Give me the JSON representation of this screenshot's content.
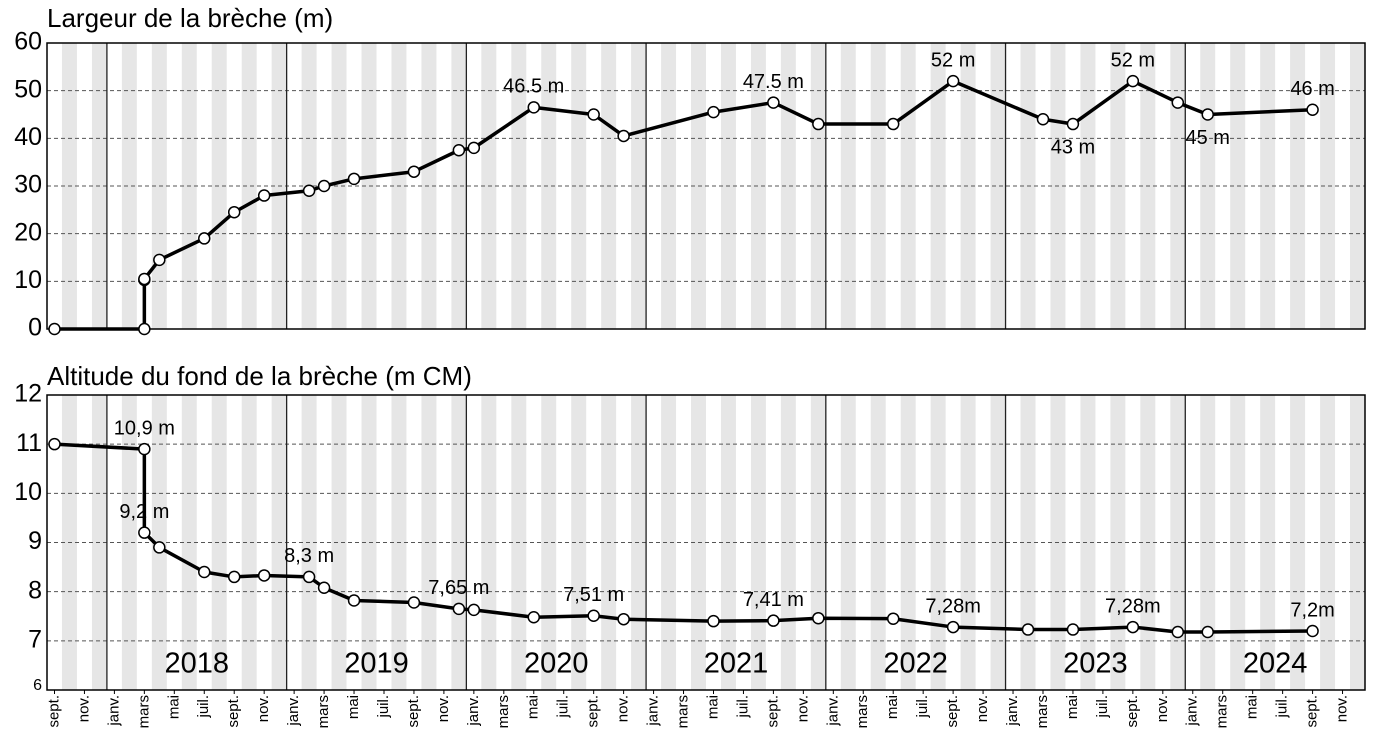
{
  "chart_data": [
    {
      "type": "line",
      "title": "Largeur de la brèche (m)",
      "xlim": [
        "2017-09",
        "2024-12"
      ],
      "ylim": [
        0,
        60
      ],
      "yticks": [
        0,
        10,
        20,
        30,
        40,
        50,
        60
      ],
      "grid": true,
      "color": "#000000",
      "x": [
        "2017-09",
        "2018-03",
        "2018-03",
        "2018-03",
        "2018-04",
        "2018-07",
        "2018-09",
        "2018-11",
        "2019-02",
        "2019-03",
        "2019-05",
        "2019-09",
        "2019-12",
        "2020-01",
        "2020-05",
        "2020-09",
        "2020-11",
        "2021-05",
        "2021-09",
        "2021-12",
        "2022-05",
        "2022-09",
        "2023-03",
        "2023-05",
        "2023-09",
        "2023-12",
        "2024-02",
        "2024-09"
      ],
      "values": [
        0,
        0,
        10.3,
        10.5,
        14.5,
        19,
        24.5,
        28,
        29,
        30,
        31.5,
        33,
        37.5,
        38,
        46.5,
        45,
        40.5,
        45.5,
        47.5,
        43,
        43,
        52,
        44,
        43,
        52,
        47.5,
        45,
        46
      ],
      "value_labels": [
        null,
        null,
        null,
        null,
        null,
        null,
        null,
        null,
        null,
        null,
        null,
        null,
        null,
        null,
        "46.5 m",
        null,
        null,
        null,
        "47.5 m",
        null,
        null,
        "52 m",
        null,
        "43 m",
        "52 m",
        null,
        "45 m",
        "46 m"
      ]
    },
    {
      "type": "line",
      "title": "Altitude du fond de la brèche (m CM)",
      "xlim": [
        "2017-09",
        "2024-12"
      ],
      "ylim": [
        6,
        12
      ],
      "yticks": [
        6,
        7,
        8,
        9,
        10,
        11,
        12
      ],
      "grid": true,
      "color": "#000000",
      "x": [
        "2017-09",
        "2018-03",
        "2018-03",
        "2018-04",
        "2018-07",
        "2018-09",
        "2018-11",
        "2019-02",
        "2019-03",
        "2019-05",
        "2019-09",
        "2019-12",
        "2020-01",
        "2020-05",
        "2020-09",
        "2020-11",
        "2021-05",
        "2021-09",
        "2021-12",
        "2022-05",
        "2022-09",
        "2023-02",
        "2023-05",
        "2023-09",
        "2023-12",
        "2024-02",
        "2024-09"
      ],
      "values": [
        11,
        10.9,
        9.2,
        8.9,
        8.4,
        8.3,
        8.33,
        8.3,
        8.08,
        7.82,
        7.78,
        7.65,
        7.63,
        7.48,
        7.51,
        7.44,
        7.4,
        7.41,
        7.46,
        7.45,
        7.28,
        7.23,
        7.23,
        7.28,
        7.18,
        7.18,
        7.2
      ],
      "value_labels": [
        null,
        "10,9 m",
        "9,2 m",
        null,
        null,
        null,
        null,
        "8,3 m",
        null,
        null,
        null,
        "7,65 m",
        null,
        null,
        "7,51 m",
        null,
        null,
        "7,41 m",
        null,
        null,
        "7,28m",
        null,
        null,
        "7,28m",
        null,
        null,
        "7,2m"
      ],
      "year_labels": [
        "2018",
        "2019",
        "2020",
        "2021",
        "2022",
        "2023",
        "2024"
      ],
      "xticks": [
        {
          "value": "2017-09",
          "label": "sept."
        },
        {
          "value": "2017-11",
          "label": "nov."
        },
        {
          "value": "2018-01",
          "label": "janv."
        },
        {
          "value": "2018-03",
          "label": "mars"
        },
        {
          "value": "2018-05",
          "label": "mai"
        },
        {
          "value": "2018-07",
          "label": "juil."
        },
        {
          "value": "2018-09",
          "label": "sept."
        },
        {
          "value": "2018-11",
          "label": "nov."
        },
        {
          "value": "2019-01",
          "label": "janv."
        },
        {
          "value": "2019-03",
          "label": "mars"
        },
        {
          "value": "2019-05",
          "label": "mai"
        },
        {
          "value": "2019-07",
          "label": "juil."
        },
        {
          "value": "2019-09",
          "label": "sept."
        },
        {
          "value": "2019-11",
          "label": "nov."
        },
        {
          "value": "2020-01",
          "label": "janv."
        },
        {
          "value": "2020-03",
          "label": "mars"
        },
        {
          "value": "2020-05",
          "label": "mai"
        },
        {
          "value": "2020-07",
          "label": "juil."
        },
        {
          "value": "2020-09",
          "label": "sept."
        },
        {
          "value": "2020-11",
          "label": "nov."
        },
        {
          "value": "2021-01",
          "label": "janv."
        },
        {
          "value": "2021-03",
          "label": "mars"
        },
        {
          "value": "2021-05",
          "label": "mai"
        },
        {
          "value": "2021-07",
          "label": "juil."
        },
        {
          "value": "2021-09",
          "label": "sept."
        },
        {
          "value": "2021-11",
          "label": "nov."
        },
        {
          "value": "2022-01",
          "label": "janv."
        },
        {
          "value": "2022-03",
          "label": "mars"
        },
        {
          "value": "2022-05",
          "label": "mai"
        },
        {
          "value": "2022-07",
          "label": "juil."
        },
        {
          "value": "2022-09",
          "label": "sept."
        },
        {
          "value": "2022-11",
          "label": "nov."
        },
        {
          "value": "2023-01",
          "label": "janv."
        },
        {
          "value": "2023-03",
          "label": "mars"
        },
        {
          "value": "2023-05",
          "label": "mai"
        },
        {
          "value": "2023-07",
          "label": "juil."
        },
        {
          "value": "2023-09",
          "label": "sept."
        },
        {
          "value": "2023-11",
          "label": "nov."
        },
        {
          "value": "2024-01",
          "label": "janv."
        },
        {
          "value": "2024-03",
          "label": "mars"
        },
        {
          "value": "2024-05",
          "label": "mai"
        },
        {
          "value": "2024-07",
          "label": "juil."
        },
        {
          "value": "2024-09",
          "label": "sept."
        },
        {
          "value": "2024-11",
          "label": "nov."
        }
      ]
    }
  ]
}
